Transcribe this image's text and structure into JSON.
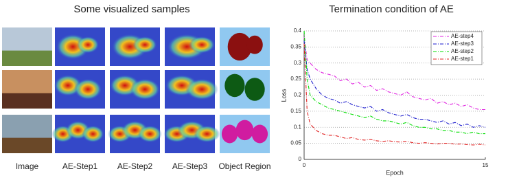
{
  "figure": {
    "title": "Some visualized samples",
    "column_labels": [
      "Image",
      "AE-Step1",
      "AE-Step2",
      "AE-Step3",
      "Object Region"
    ]
  },
  "chart_data": {
    "type": "line",
    "title": "Termination condition of AE",
    "x_label": "Epoch",
    "y_label": "Loss",
    "x": [
      0,
      0.25,
      0.5,
      1,
      1.5,
      2,
      2.5,
      3,
      3.5,
      4,
      4.5,
      5,
      5.5,
      6,
      6.5,
      7,
      7.5,
      8,
      8.5,
      9,
      9.5,
      10,
      10.5,
      11,
      11.5,
      12,
      12.5,
      13,
      13.5,
      14,
      14.5,
      15
    ],
    "series": [
      {
        "name": "AE-step4",
        "color": "#e022e0",
        "values": [
          0.38,
          0.31,
          0.3,
          0.28,
          0.27,
          0.265,
          0.26,
          0.245,
          0.25,
          0.235,
          0.24,
          0.225,
          0.23,
          0.215,
          0.22,
          0.21,
          0.205,
          0.2,
          0.21,
          0.195,
          0.19,
          0.185,
          0.19,
          0.175,
          0.18,
          0.17,
          0.175,
          0.165,
          0.17,
          0.16,
          0.155,
          0.155
        ]
      },
      {
        "name": "AE-step3",
        "color": "#1a1acc",
        "values": [
          0.37,
          0.28,
          0.25,
          0.22,
          0.2,
          0.19,
          0.185,
          0.175,
          0.18,
          0.17,
          0.165,
          0.16,
          0.165,
          0.15,
          0.155,
          0.145,
          0.14,
          0.135,
          0.14,
          0.13,
          0.125,
          0.125,
          0.12,
          0.115,
          0.12,
          0.11,
          0.115,
          0.105,
          0.11,
          0.1,
          0.105,
          0.1
        ]
      },
      {
        "name": "AE-step2",
        "color": "#00dd00",
        "values": [
          0.4,
          0.25,
          0.2,
          0.18,
          0.17,
          0.16,
          0.155,
          0.15,
          0.145,
          0.14,
          0.135,
          0.13,
          0.135,
          0.125,
          0.12,
          0.12,
          0.115,
          0.11,
          0.115,
          0.105,
          0.1,
          0.1,
          0.095,
          0.095,
          0.09,
          0.09,
          0.085,
          0.085,
          0.08,
          0.085,
          0.08,
          0.08
        ]
      },
      {
        "name": "AE-step1",
        "color": "#e02020",
        "values": [
          0.36,
          0.15,
          0.11,
          0.09,
          0.08,
          0.075,
          0.075,
          0.07,
          0.065,
          0.068,
          0.062,
          0.06,
          0.062,
          0.058,
          0.056,
          0.058,
          0.055,
          0.054,
          0.056,
          0.052,
          0.05,
          0.052,
          0.05,
          0.048,
          0.05,
          0.05,
          0.047,
          0.048,
          0.046,
          0.045,
          0.047,
          0.045
        ]
      }
    ],
    "xlim": [
      0,
      15
    ],
    "xticks": [
      0,
      15
    ],
    "ylim": [
      0,
      0.4
    ],
    "yticks": [
      0,
      0.05,
      0.1,
      0.15,
      0.2,
      0.25,
      0.3,
      0.35,
      0.4
    ],
    "grid": true,
    "legend": "upper right"
  }
}
